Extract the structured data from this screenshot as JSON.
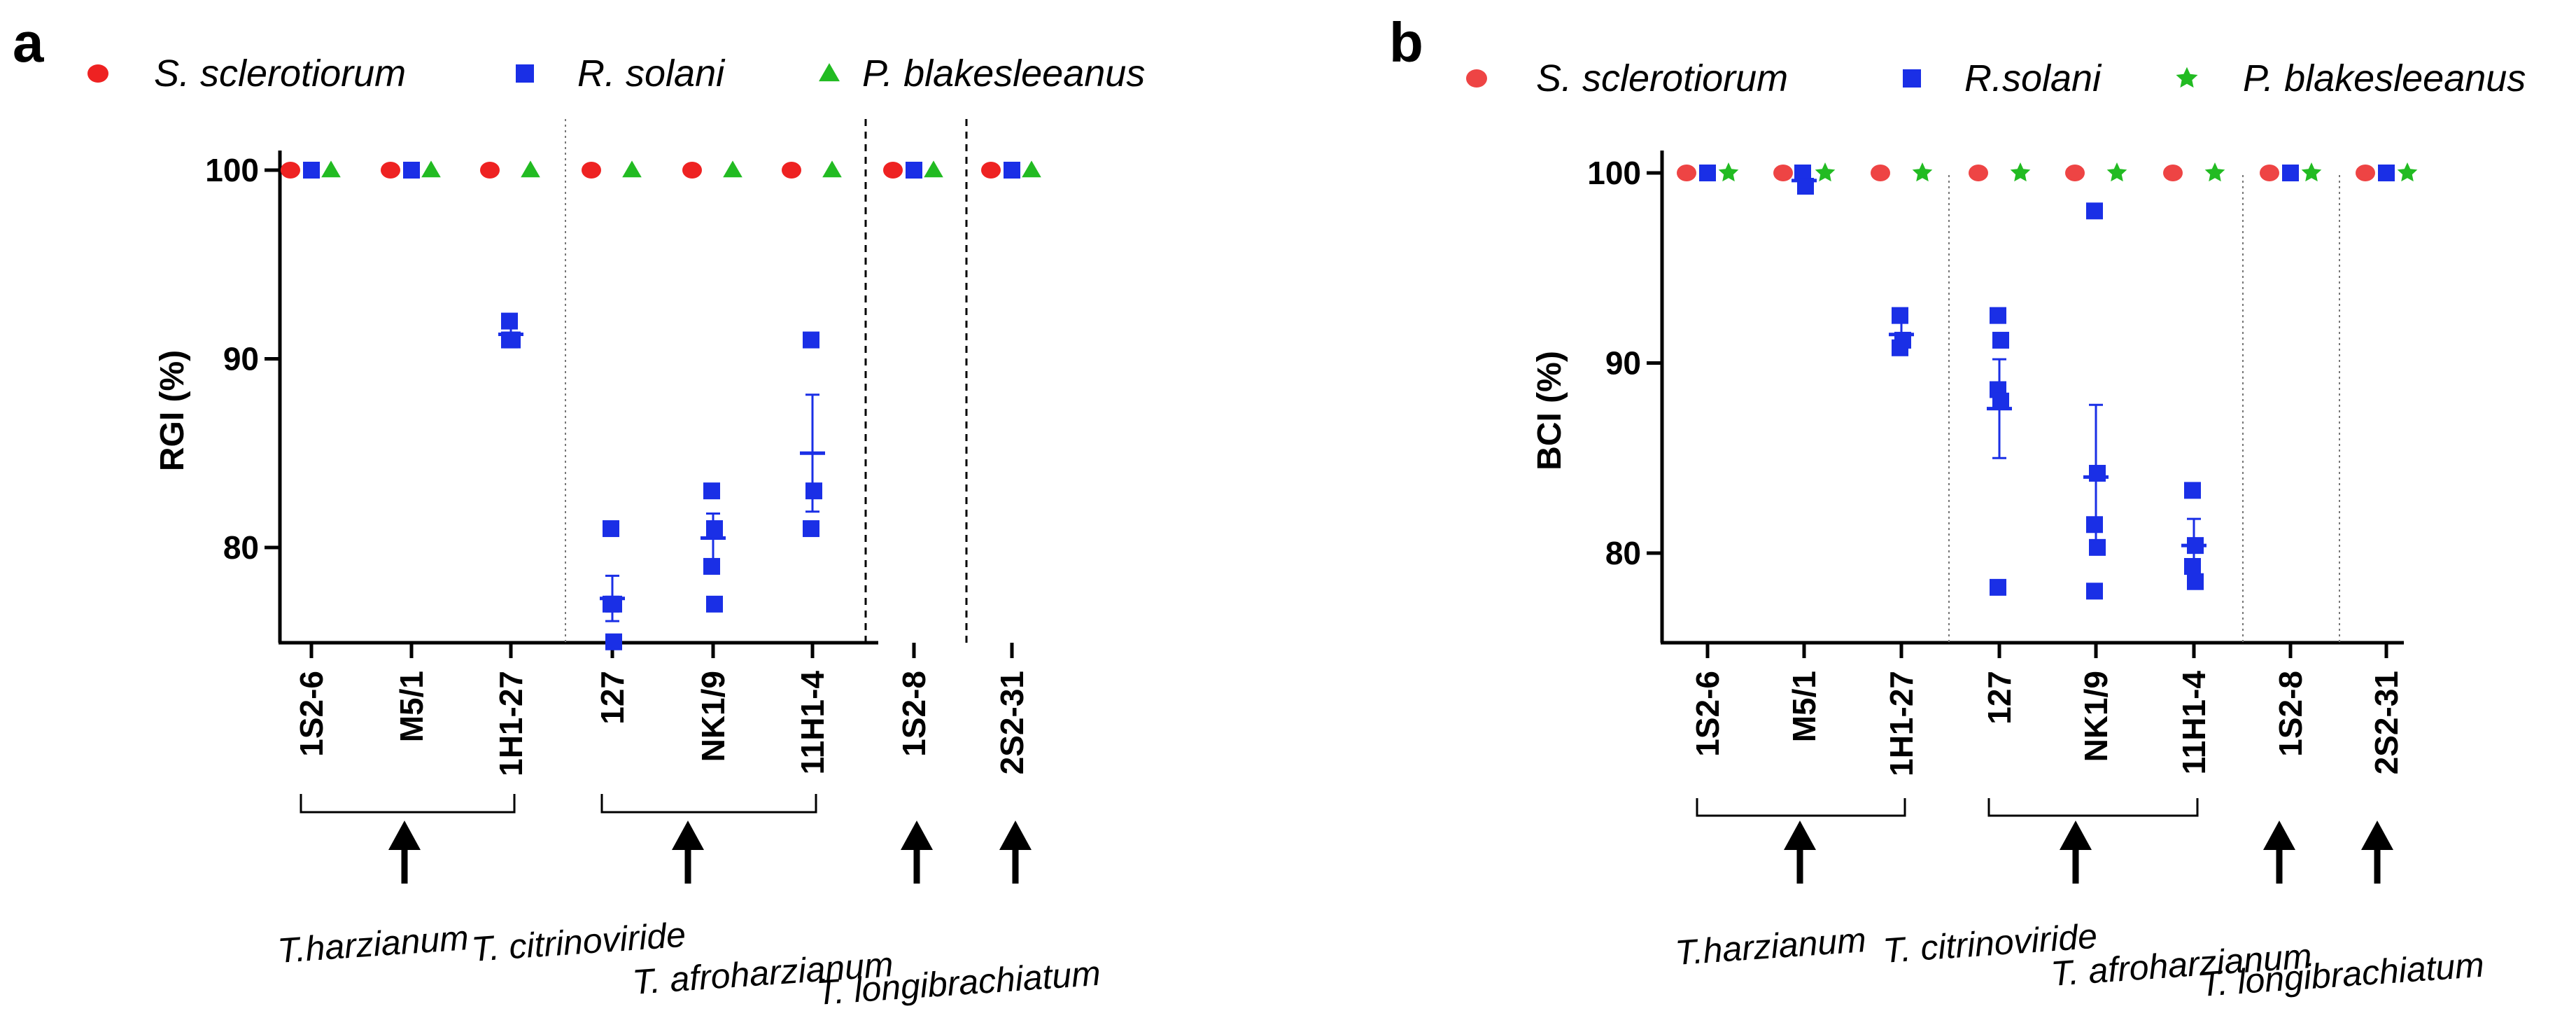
{
  "chart_data": [
    {
      "panel": "a",
      "type": "scatter",
      "ylabel": "RGI (%)",
      "xlabel": "",
      "ylim": [
        75,
        102
      ],
      "yticks": [
        80,
        90,
        100
      ],
      "categories": [
        "1S2-6",
        "M5/1",
        "1H1-27",
        "127",
        "NK1/9",
        "11H1-4",
        "1S2-8",
        "2S2-31"
      ],
      "separators": [
        {
          "after": 2,
          "style": "dotted"
        },
        {
          "after": 5,
          "style": "dashed"
        },
        {
          "after": 6,
          "style": "dashed"
        }
      ],
      "groups": [
        {
          "label": "T.harzianum",
          "from": 0,
          "to": 2
        },
        {
          "label": "T. citrinoviride",
          "from": 3,
          "to": 5
        },
        {
          "label": "T. afroharzianum",
          "from": 6,
          "to": 6
        },
        {
          "label": "T. longibrachiatum",
          "from": 7,
          "to": 7
        }
      ],
      "series": [
        {
          "name": "S. sclerotiorum",
          "marker": "circle",
          "color": "#ee2222",
          "points": [
            [
              100
            ],
            [
              100
            ],
            [
              100
            ],
            [
              100
            ],
            [
              100
            ],
            [
              100
            ],
            [
              100
            ],
            [
              100
            ]
          ],
          "mean": [
            100,
            100,
            100,
            100,
            100,
            100,
            100,
            100
          ],
          "error": [
            0,
            0,
            0,
            0,
            0,
            0,
            0,
            0
          ]
        },
        {
          "name": "R. solani",
          "marker": "square",
          "color": "#1a2fe6",
          "points": [
            [
              100
            ],
            [
              100
            ],
            [
              92,
              91,
              91
            ],
            [
              81,
              77,
              77,
              75
            ],
            [
              83,
              81,
              79,
              77
            ],
            [
              91,
              83,
              81
            ],
            [
              100
            ],
            [
              100
            ]
          ],
          "mean": [
            100,
            100,
            91.3,
            77.3,
            80.5,
            85,
            100,
            100
          ],
          "error": [
            0,
            0,
            0.4,
            1.2,
            1.3,
            3.1,
            0,
            0
          ]
        },
        {
          "name": "P. blakesleeanus",
          "marker": "triangle",
          "color": "#22bb22",
          "points": [
            [
              100
            ],
            [
              100
            ],
            [
              100
            ],
            [
              100
            ],
            [
              100
            ],
            [
              100
            ],
            [
              100
            ],
            [
              100
            ]
          ],
          "mean": [
            100,
            100,
            100,
            100,
            100,
            100,
            100,
            100
          ],
          "error": [
            0,
            0,
            0,
            0,
            0,
            0,
            0,
            0
          ]
        }
      ]
    },
    {
      "panel": "b",
      "type": "scatter",
      "ylabel": "BCI (%)",
      "xlabel": "",
      "ylim": [
        75,
        102
      ],
      "yticks": [
        80,
        90,
        100
      ],
      "categories": [
        "1S2-6",
        "M5/1",
        "1H1-27",
        "127",
        "NK1/9",
        "11H1-4",
        "1S2-8",
        "2S2-31"
      ],
      "separators": [
        {
          "after": 2,
          "style": "dotted"
        },
        {
          "after": 5,
          "style": "dotted"
        },
        {
          "after": 6,
          "style": "dotted"
        }
      ],
      "groups": [
        {
          "label": "T.harzianum",
          "from": 0,
          "to": 2
        },
        {
          "label": "T. citrinoviride",
          "from": 3,
          "to": 5
        },
        {
          "label": "T. afroharzianum",
          "from": 6,
          "to": 6
        },
        {
          "label": "T. longibrachiatum",
          "from": 7,
          "to": 7
        }
      ],
      "series": [
        {
          "name": "S. sclerotiorum",
          "marker": "circle",
          "color": "#ee4444",
          "points": [
            [
              100
            ],
            [
              100
            ],
            [
              100
            ],
            [
              100
            ],
            [
              100
            ],
            [
              100
            ],
            [
              100
            ],
            [
              100
            ]
          ],
          "mean": [
            100,
            100,
            100,
            100,
            100,
            100,
            100,
            100
          ],
          "error": [
            0,
            0,
            0,
            0,
            0,
            0,
            0,
            0
          ]
        },
        {
          "name": "R.solani",
          "marker": "square",
          "color": "#1a2fe6",
          "points": [
            [
              100
            ],
            [
              100,
              99.3
            ],
            [
              92.5,
              91.2,
              90.8
            ],
            [
              92.5,
              91.2,
              88.6,
              88.0,
              78.2
            ],
            [
              98.0,
              84.2,
              81.5,
              80.3,
              78.0
            ],
            [
              83.3,
              80.4,
              79.3,
              78.5
            ],
            [
              100
            ],
            [
              100
            ]
          ],
          "mean": [
            100,
            99.6,
            91.5,
            87.6,
            84.0,
            80.4,
            100,
            100
          ],
          "error": [
            0,
            0.3,
            0.9,
            2.6,
            3.8,
            1.4,
            0,
            0
          ]
        },
        {
          "name": "P. blakesleeanus",
          "marker": "star",
          "color": "#22bb22",
          "points": [
            [
              100
            ],
            [
              100
            ],
            [
              100
            ],
            [
              100
            ],
            [
              100
            ],
            [
              100
            ],
            [
              100
            ],
            [
              100
            ]
          ],
          "mean": [
            100,
            100,
            100,
            100,
            100,
            100,
            100,
            100
          ],
          "error": [
            0,
            0,
            0,
            0,
            0,
            0,
            0,
            0
          ]
        }
      ]
    }
  ]
}
